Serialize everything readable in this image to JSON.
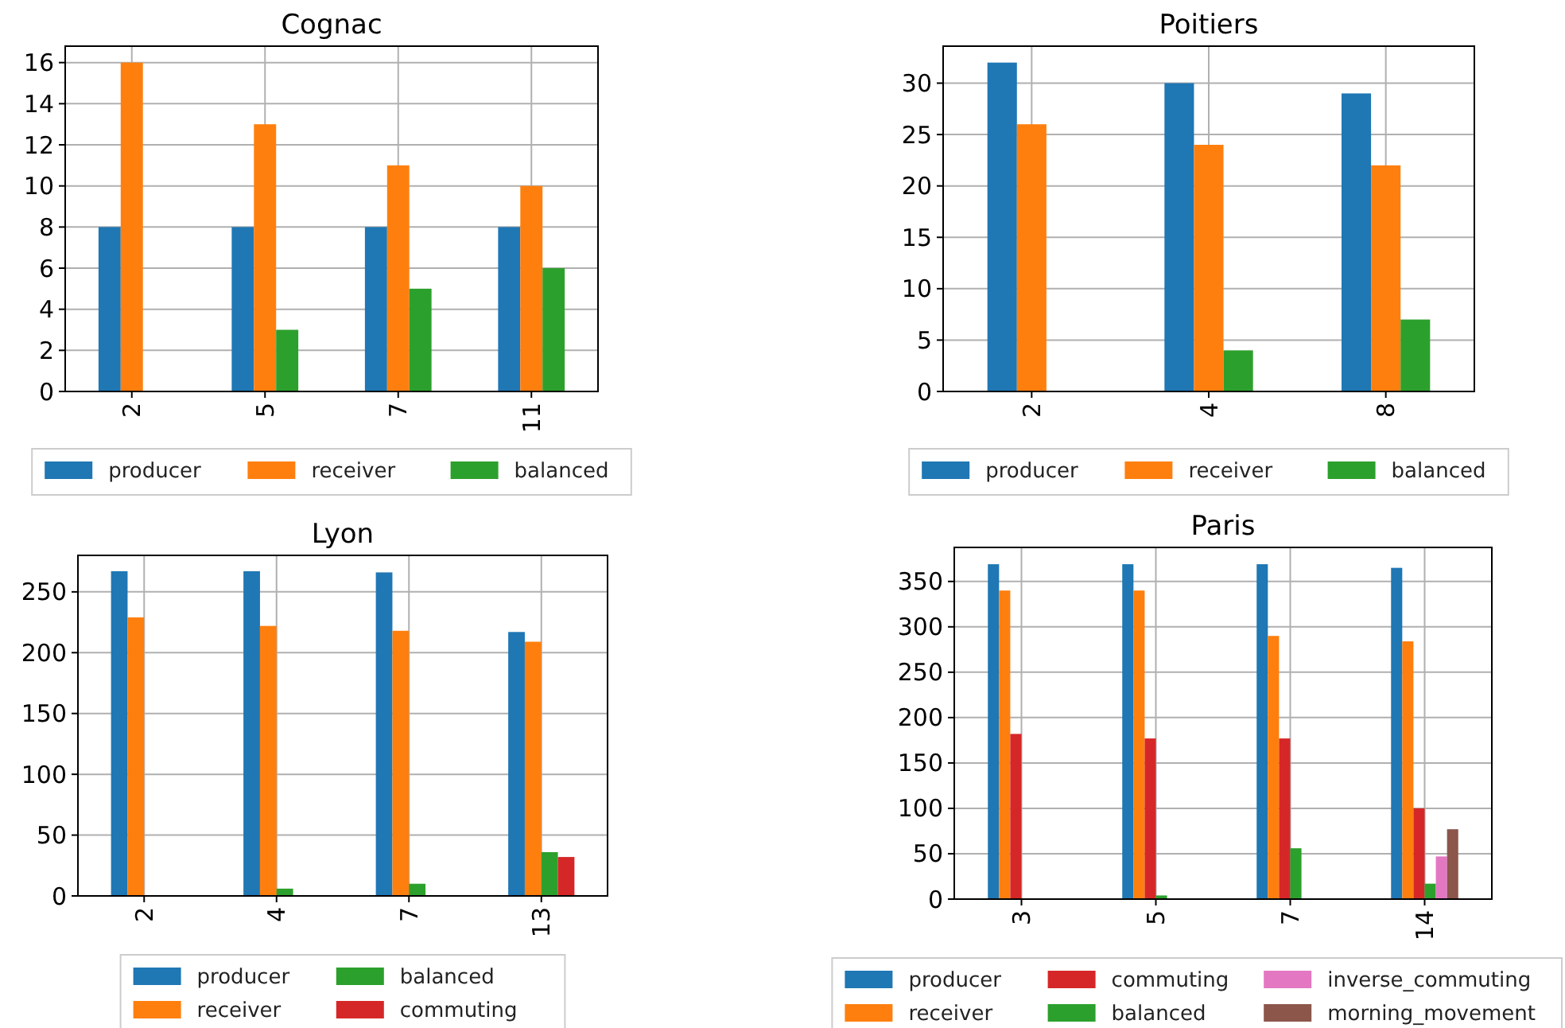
{
  "chart_data": [
    {
      "type": "bar",
      "title": "Cognac",
      "categories": [
        "2",
        "5",
        "7",
        "11"
      ],
      "series": [
        {
          "name": "producer",
          "color": "#1f77b4",
          "values": [
            8,
            8,
            8,
            8
          ]
        },
        {
          "name": "receiver",
          "color": "#ff7f0e",
          "values": [
            16,
            13,
            11,
            10
          ]
        },
        {
          "name": "balanced",
          "color": "#2ca02c",
          "values": [
            0,
            3,
            5,
            6
          ]
        }
      ],
      "ylim": [
        0,
        16.8
      ],
      "yticks": [
        0,
        2,
        4,
        6,
        8,
        10,
        12,
        14,
        16
      ],
      "grid": true,
      "legend": "bottom"
    },
    {
      "type": "bar",
      "title": "Poitiers",
      "categories": [
        "2",
        "4",
        "8"
      ],
      "series": [
        {
          "name": "producer",
          "color": "#1f77b4",
          "values": [
            32,
            30,
            29
          ]
        },
        {
          "name": "receiver",
          "color": "#ff7f0e",
          "values": [
            26,
            24,
            22
          ]
        },
        {
          "name": "balanced",
          "color": "#2ca02c",
          "values": [
            0,
            4,
            7
          ]
        }
      ],
      "ylim": [
        0,
        33.6
      ],
      "yticks": [
        0,
        5,
        10,
        15,
        20,
        25,
        30
      ],
      "grid": true,
      "legend": "bottom"
    },
    {
      "type": "bar",
      "title": "Lyon",
      "categories": [
        "2",
        "4",
        "7",
        "13"
      ],
      "series": [
        {
          "name": "producer",
          "color": "#1f77b4",
          "values": [
            267,
            267,
            266,
            217
          ]
        },
        {
          "name": "receiver",
          "color": "#ff7f0e",
          "values": [
            229,
            222,
            218,
            209
          ]
        },
        {
          "name": "balanced",
          "color": "#2ca02c",
          "values": [
            0,
            6,
            10,
            36
          ]
        },
        {
          "name": "commuting",
          "color": "#d62728",
          "values": [
            0,
            0,
            0,
            32
          ]
        }
      ],
      "ylim": [
        0,
        280
      ],
      "yticks": [
        0,
        50,
        100,
        150,
        200,
        250
      ],
      "grid": true,
      "legend": "bottom"
    },
    {
      "type": "bar",
      "title": "Paris",
      "categories": [
        "3",
        "5",
        "7",
        "14"
      ],
      "series": [
        {
          "name": "producer",
          "color": "#1f77b4",
          "values": [
            369,
            369,
            369,
            365
          ]
        },
        {
          "name": "receiver",
          "color": "#ff7f0e",
          "values": [
            340,
            340,
            290,
            284
          ]
        },
        {
          "name": "commuting",
          "color": "#d62728",
          "values": [
            182,
            177,
            177,
            100
          ]
        },
        {
          "name": "balanced",
          "color": "#2ca02c",
          "values": [
            0,
            4,
            56,
            17
          ]
        },
        {
          "name": "inverse_commuting",
          "color": "#e377c2",
          "values": [
            0,
            0,
            0,
            47
          ]
        },
        {
          "name": "morning_movement",
          "color": "#8c564b",
          "values": [
            0,
            0,
            0,
            77
          ]
        }
      ],
      "ylim": [
        0,
        387.5
      ],
      "yticks": [
        0,
        50,
        100,
        150,
        200,
        250,
        300,
        350
      ],
      "grid": true,
      "legend": "bottom"
    }
  ]
}
